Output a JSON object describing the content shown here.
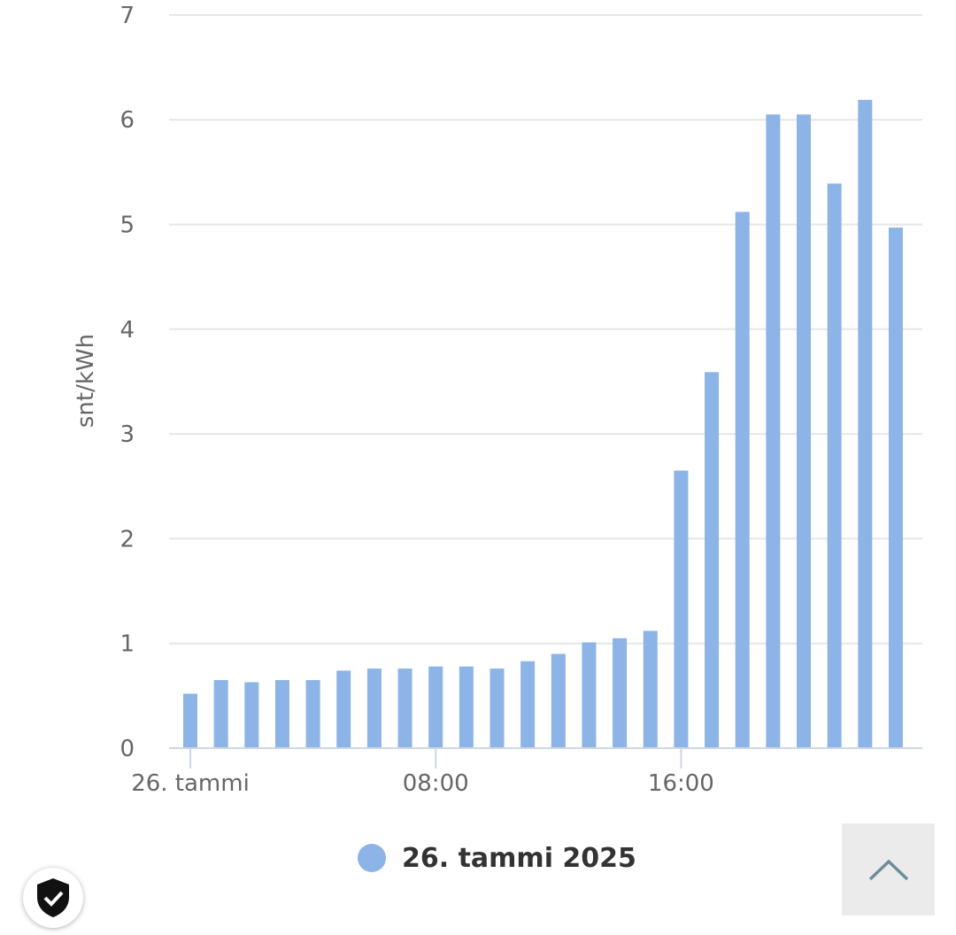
{
  "chart_data": {
    "type": "bar",
    "x": [
      "00:00",
      "01:00",
      "02:00",
      "03:00",
      "04:00",
      "05:00",
      "06:00",
      "07:00",
      "08:00",
      "09:00",
      "10:00",
      "11:00",
      "12:00",
      "13:00",
      "14:00",
      "15:00",
      "16:00",
      "17:00",
      "18:00",
      "19:00",
      "20:00",
      "21:00",
      "22:00",
      "23:00"
    ],
    "series": [
      {
        "name": "26. tammi 2025",
        "color": "#8cb4e6",
        "values": [
          0.52,
          0.65,
          0.63,
          0.65,
          0.65,
          0.74,
          0.76,
          0.76,
          0.78,
          0.78,
          0.76,
          0.83,
          0.9,
          1.01,
          1.05,
          1.12,
          2.65,
          3.59,
          5.12,
          6.05,
          6.05,
          5.39,
          6.19,
          4.97
        ]
      }
    ],
    "xticks": [
      {
        "index": 0,
        "label": "26. tammi"
      },
      {
        "index": 8,
        "label": "08:00"
      },
      {
        "index": 16,
        "label": "16:00"
      }
    ],
    "yticks": [
      0,
      1,
      2,
      3,
      4,
      5,
      6,
      7
    ],
    "ylim": [
      0,
      7
    ],
    "ylabel": "snt/kWh",
    "grid": true,
    "legend": "bottom"
  },
  "legend": {
    "label": "26. tammi 2025",
    "color": "#8cb4e6"
  },
  "scroll_top": {
    "icon": "chevron-up-icon"
  },
  "badge": {
    "icon": "shield-check-icon"
  }
}
